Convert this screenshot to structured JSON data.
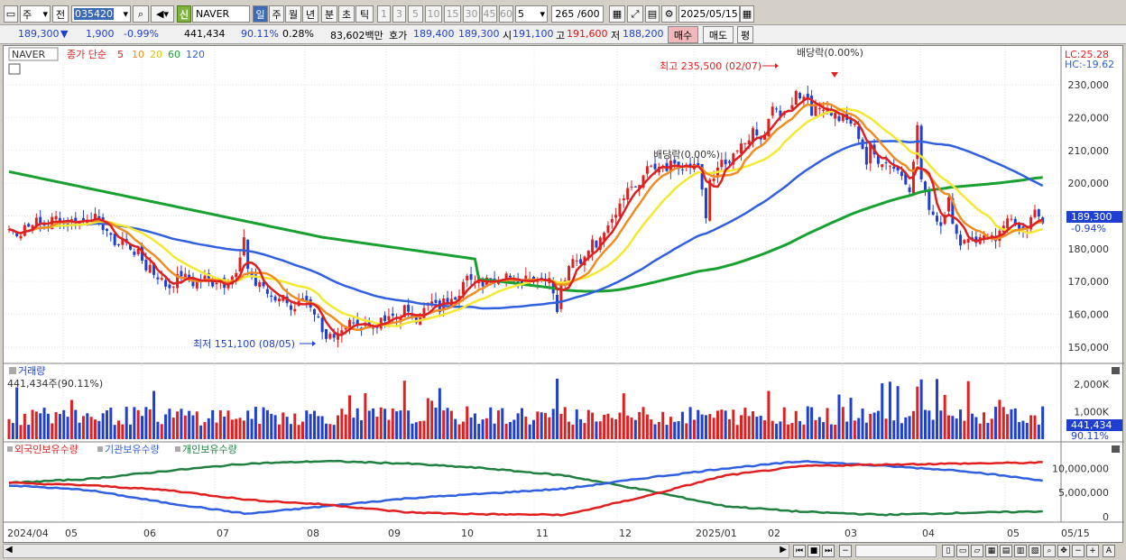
{
  "toolbar": {
    "period_main": "주",
    "view_type": "전",
    "stock_code": "035420",
    "stock_name": "NAVER",
    "shin_label": "신",
    "tab_day": "일",
    "tab_week": "주",
    "tab_month": "월",
    "tab_year": "년",
    "tab_min": "분",
    "tab_sec": "초",
    "tab_tick": "틱",
    "intervals": [
      "1",
      "3",
      "5",
      "10",
      "15",
      "30",
      "45",
      "60"
    ],
    "interval_value": "5",
    "count_display": "265 /600",
    "date_value": "2025/05/15"
  },
  "quote": {
    "price": "189,300",
    "change": "1,900",
    "change_pct": "-0.99%",
    "volume": "441,434",
    "vol_ratio": "90.11%",
    "turnover_pct": "0.28%",
    "amount": "83,602백만",
    "bid_label": "호가",
    "bid1": "189,400",
    "bid2": "189,300",
    "open_label": "시",
    "open": "191,100",
    "high_label": "고",
    "high": "191,600",
    "low_label": "저",
    "low": "188,200",
    "buy_label": "매수",
    "sell_label": "매도",
    "avg_label": "평"
  },
  "price_panel": {
    "legend_name": "NAVER",
    "legend_ma": "종가 단순",
    "ma_periods": [
      "5",
      "10",
      "20",
      "60",
      "120"
    ],
    "ma_colors": [
      "#e02020",
      "#f08c20",
      "#f4e830",
      "#18a030",
      "#3060e0"
    ],
    "lc_label": "LC:25.28",
    "hc_label": "HC:-19.62",
    "high_annotation": "최고 235,500 (02/07)",
    "low_annotation": "최저 151,100 (08/05)",
    "dividend_label_top": "배당락(0.00%)",
    "dividend_label_mid": "배당락(0.00%)",
    "current_price_tag": "189,300",
    "current_change_tag": "-0.94%",
    "y_ticks": [
      "230,000",
      "220,000",
      "210,000",
      "200,000",
      "190,000",
      "180,000",
      "170,000",
      "160,000",
      "150,000"
    ]
  },
  "volume_panel": {
    "title": "거래량",
    "value": "441,434주(90.11%)",
    "y_ticks": [
      "2,000K",
      "1,000K"
    ],
    "tag_value": "441,434",
    "tag_pct": "90.11%"
  },
  "holdings_panel": {
    "legend": [
      "외국인보유수량",
      "기관보유수량",
      "개인보유수량"
    ],
    "colors": [
      "#e02020",
      "#3060e0",
      "#208040"
    ],
    "y_ticks": [
      "10,000,000",
      "5,000,000",
      "0"
    ]
  },
  "x_axis": {
    "labels": [
      "2024/04",
      "05",
      "06",
      "07",
      "08",
      "09",
      "10",
      "11",
      "12",
      "2025/01",
      "02",
      "03",
      "04",
      "05",
      "05/15"
    ]
  },
  "chart_data": {
    "type": "line",
    "title": "NAVER",
    "x": [
      "2024/04",
      "05",
      "06",
      "07",
      "08",
      "09",
      "10",
      "11",
      "12",
      "2025/01",
      "02",
      "03",
      "04",
      "05"
    ],
    "series": [
      {
        "name": "NAVER",
        "values": [
          186000,
          190000,
          170000,
          172000,
          155000,
          160000,
          172000,
          172000,
          203000,
          205000,
          230000,
          208000,
          182000,
          189300
        ]
      }
    ],
    "ylim": [
      145000,
      238000
    ],
    "annotations": [
      "최고 235,500 (02/07)",
      "최저 151,100 (08/05)",
      "배당락(0.00%)"
    ]
  }
}
